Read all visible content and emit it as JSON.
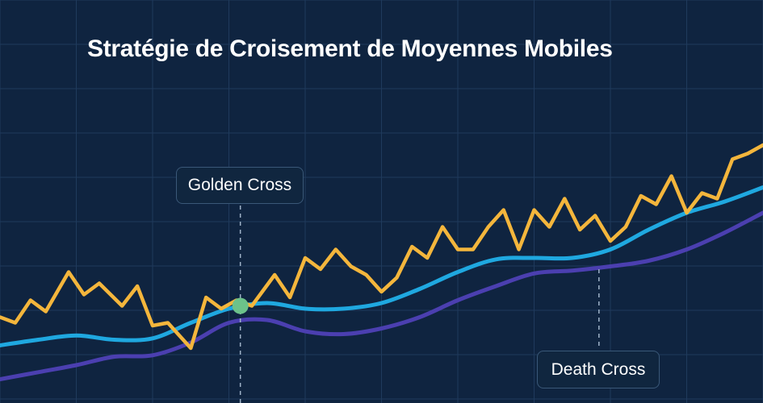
{
  "title": "Stratégie de Croisement de Moyennes Mobiles",
  "annotations": {
    "golden_cross": "Golden Cross",
    "death_cross": "Death Cross"
  },
  "colors": {
    "background": "#0f2440",
    "grid": "#1f3a5c",
    "price": "#f4b63c",
    "fast_ma": "#1fa8e0",
    "slow_ma": "#4b3fb0",
    "golden_marker": "#6cc28a",
    "callout_border": "#3a5878"
  },
  "chart_data": {
    "type": "line",
    "title": "Stratégie de Croisement de Moyennes Mobiles",
    "xlabel": "",
    "ylabel": "",
    "xlim": [
      0,
      100
    ],
    "ylim": [
      0,
      100
    ],
    "grid": true,
    "legend": "none",
    "series": [
      {
        "key": "price",
        "x": [
          0,
          2,
          4,
          6,
          9,
          11,
          13,
          16,
          18,
          20,
          22,
          25,
          27,
          29,
          31,
          33,
          36,
          38,
          40,
          42,
          44,
          46,
          48,
          50,
          52,
          54,
          56,
          58,
          60,
          62,
          64,
          66,
          68,
          70,
          72,
          74,
          76,
          78,
          80,
          82,
          84,
          86,
          88,
          90,
          92,
          94,
          96,
          98,
          100
        ],
        "y": [
          19,
          17,
          25,
          21,
          35,
          27,
          31,
          23,
          30,
          16,
          17,
          8,
          26,
          22,
          25,
          23,
          34,
          26,
          40,
          36,
          43,
          37,
          34,
          28,
          33,
          44,
          40,
          51,
          43,
          43,
          51,
          57,
          43,
          57,
          51,
          61,
          50,
          55,
          46,
          51,
          62,
          59,
          69,
          56,
          63,
          61,
          75,
          77,
          80
        ]
      },
      {
        "key": "fast_ma",
        "x": [
          0,
          5,
          10,
          15,
          20,
          25,
          30,
          35,
          40,
          45,
          50,
          55,
          60,
          65,
          70,
          75,
          80,
          85,
          90,
          95,
          100
        ],
        "y": [
          9,
          11,
          12.5,
          11,
          11.5,
          17,
          22,
          24,
          22,
          22,
          24,
          29,
          35,
          39.5,
          40,
          40,
          43,
          50,
          56,
          60,
          65
        ]
      },
      {
        "key": "slow_ma",
        "x": [
          0,
          5,
          10,
          15,
          20,
          25,
          30,
          35,
          40,
          45,
          50,
          55,
          60,
          65,
          70,
          75,
          80,
          85,
          90,
          95,
          100
        ],
        "y": [
          -3,
          -0.5,
          2,
          5,
          5.5,
          10,
          17,
          18,
          14,
          13,
          15,
          19,
          25,
          30,
          34.5,
          35.5,
          37,
          39,
          43,
          49,
          56
        ]
      }
    ],
    "markers": [
      {
        "label_key": "golden_cross",
        "x": 31.5,
        "y": 23,
        "style": "dot"
      },
      {
        "label_key": "death_cross",
        "x": 78.5,
        "y": 36,
        "style": "dashed-line"
      }
    ]
  }
}
